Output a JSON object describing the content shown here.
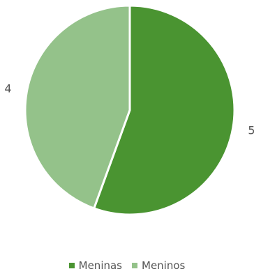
{
  "chart_data": {
    "type": "pie",
    "categories": [
      "Meninas",
      "Meninos"
    ],
    "values": [
      5,
      4
    ],
    "colors": [
      "#4a9431",
      "#94c28a"
    ],
    "slice_border_color": "#ffffff",
    "start_angle_deg": 0,
    "direction": "clockwise",
    "title": "",
    "legend_position": "bottom"
  }
}
